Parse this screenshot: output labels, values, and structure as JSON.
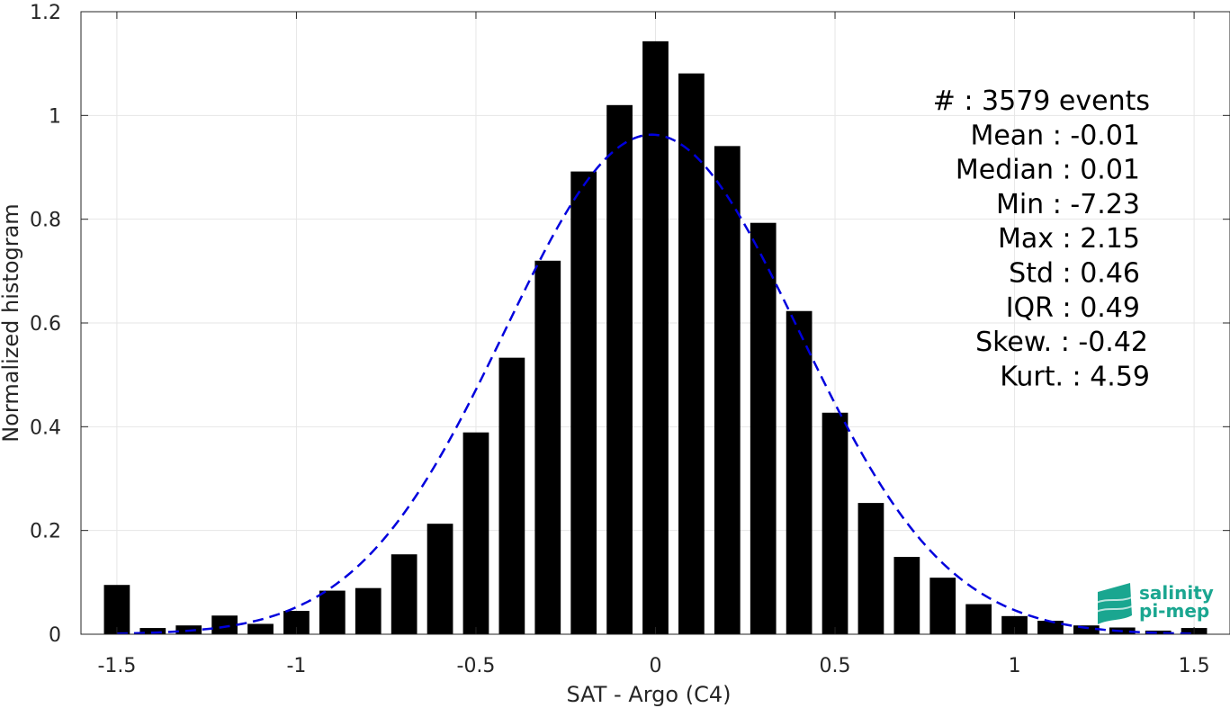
{
  "chart_data": {
    "type": "bar",
    "xlabel": "SAT - Argo (C4)",
    "ylabel": "Normalized histogram",
    "xlim": [
      -1.6,
      1.6
    ],
    "ylim": [
      0,
      1.2
    ],
    "xticks": [
      -1.5,
      -1,
      -0.5,
      0,
      0.5,
      1,
      1.5
    ],
    "xtick_labels": [
      "-1.5",
      "-1",
      "-0.5",
      "0",
      "0.5",
      "1",
      "1.5"
    ],
    "yticks": [
      0,
      0.2,
      0.4,
      0.6,
      0.8,
      1,
      1.2
    ],
    "ytick_labels": [
      "0",
      "0.2",
      "0.4",
      "0.6",
      "0.8",
      "1",
      "1.2"
    ],
    "grid": true,
    "bar_color": "#000000",
    "bin_width": 0.1,
    "x": [
      -1.5,
      -1.4,
      -1.3,
      -1.2,
      -1.1,
      -1.0,
      -0.9,
      -0.8,
      -0.7,
      -0.6,
      -0.5,
      -0.4,
      -0.3,
      -0.2,
      -0.1,
      0.0,
      0.1,
      0.2,
      0.3,
      0.4,
      0.5,
      0.6,
      0.7,
      0.8,
      0.9,
      1.0,
      1.1,
      1.2,
      1.3,
      1.4,
      1.5
    ],
    "values": [
      0.095,
      0.012,
      0.017,
      0.036,
      0.02,
      0.045,
      0.084,
      0.089,
      0.154,
      0.213,
      0.389,
      0.533,
      0.72,
      0.892,
      1.02,
      1.143,
      1.081,
      0.941,
      0.793,
      0.623,
      0.427,
      0.253,
      0.149,
      0.109,
      0.058,
      0.035,
      0.026,
      0.017,
      0.013,
      0.007,
      0.012
    ],
    "fit": {
      "type": "gaussian",
      "color": "#0000dd",
      "line_style": "dashed",
      "mean": -0.01,
      "std": 0.41,
      "peak": 0.963
    },
    "annotations": [
      "#  : 3579 events",
      "Mean : -0.01",
      "Median : 0.01",
      "Min : -7.23",
      "Max : 2.15",
      "Std : 0.46",
      "IQR : 0.49",
      "Skew. : -0.42",
      "Kurt. : 4.59"
    ]
  },
  "logo": {
    "line1": "salinity",
    "line2": "pi-mep",
    "color": "#1aa690"
  }
}
